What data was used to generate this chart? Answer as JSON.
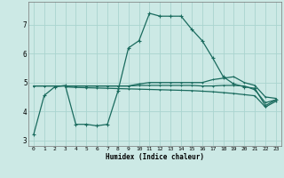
{
  "xlabel": "Humidex (Indice chaleur)",
  "background_color": "#cce9e5",
  "grid_color": "#aad4cf",
  "line_color": "#1a6b5e",
  "xlim": [
    -0.5,
    23.5
  ],
  "ylim": [
    2.8,
    7.8
  ],
  "xticks": [
    0,
    1,
    2,
    3,
    4,
    5,
    6,
    7,
    8,
    9,
    10,
    11,
    12,
    13,
    14,
    15,
    16,
    17,
    18,
    19,
    20,
    21,
    22,
    23
  ],
  "yticks": [
    3,
    4,
    5,
    6,
    7
  ],
  "line1_x": [
    0,
    1,
    2,
    3,
    4,
    5,
    6,
    7,
    8,
    9,
    10,
    11,
    12,
    13,
    14,
    15,
    16,
    17,
    18,
    19,
    20,
    21,
    22,
    23
  ],
  "line1_y": [
    3.2,
    4.55,
    4.85,
    4.9,
    3.55,
    3.55,
    3.5,
    3.55,
    4.7,
    6.2,
    6.45,
    7.4,
    7.3,
    7.3,
    7.3,
    6.85,
    6.45,
    5.85,
    5.2,
    4.95,
    4.85,
    4.8,
    4.2,
    4.4
  ],
  "line2_x": [
    3,
    4,
    5,
    6,
    7,
    8,
    9,
    10,
    11,
    12,
    13,
    14,
    15,
    16,
    17,
    18,
    19,
    20,
    21,
    22,
    23
  ],
  "line2_y": [
    4.85,
    4.83,
    4.82,
    4.81,
    4.8,
    4.79,
    4.78,
    4.77,
    4.76,
    4.75,
    4.74,
    4.73,
    4.72,
    4.7,
    4.68,
    4.65,
    4.62,
    4.58,
    4.54,
    4.15,
    4.35
  ],
  "line3_x": [
    0,
    1,
    2,
    3,
    4,
    5,
    6,
    7,
    8,
    9,
    10,
    11,
    12,
    13,
    14,
    15,
    16,
    17,
    18,
    19,
    20,
    21,
    22,
    23
  ],
  "line3_y": [
    4.88,
    4.88,
    4.88,
    4.88,
    4.88,
    4.88,
    4.88,
    4.88,
    4.88,
    4.88,
    4.9,
    4.9,
    4.9,
    4.9,
    4.9,
    4.9,
    4.88,
    4.88,
    4.9,
    4.9,
    4.88,
    4.75,
    4.3,
    4.4
  ],
  "line4_x": [
    0,
    1,
    2,
    3,
    4,
    5,
    6,
    7,
    8,
    9,
    10,
    11,
    12,
    13,
    14,
    15,
    16,
    17,
    18,
    19,
    20,
    21,
    22,
    23
  ],
  "line4_y": [
    4.88,
    4.88,
    4.88,
    4.88,
    4.88,
    4.88,
    4.88,
    4.88,
    4.88,
    4.88,
    4.95,
    5.0,
    5.0,
    5.0,
    5.0,
    5.0,
    5.0,
    5.1,
    5.15,
    5.2,
    5.0,
    4.9,
    4.5,
    4.45
  ]
}
